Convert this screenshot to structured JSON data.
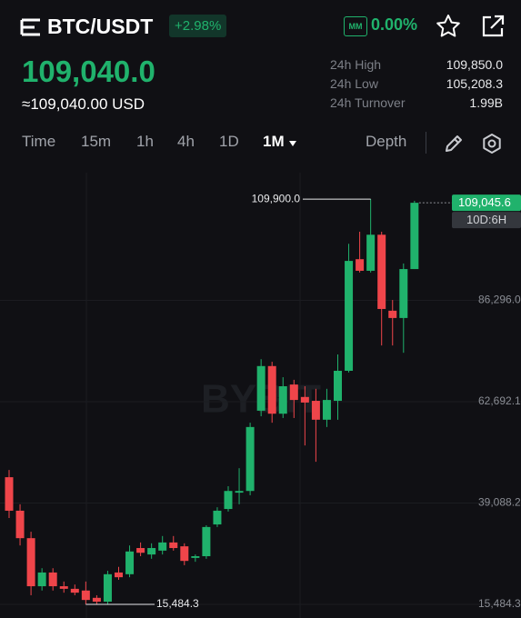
{
  "header": {
    "symbol": "BTC/USDT",
    "change": "+2.98%",
    "mm": "MM",
    "mm_rate": "0.00%"
  },
  "price": {
    "last": "109,040.0",
    "usd": "≈109,040.00 USD"
  },
  "stats": [
    {
      "label": "24h High",
      "value": "109,850.0"
    },
    {
      "label": "24h Low",
      "value": "105,208.3"
    },
    {
      "label": "24h Turnover",
      "value": "1.99B"
    }
  ],
  "tabs": [
    "Time",
    "15m",
    "1h",
    "4h",
    "1D",
    "1M",
    "Depth"
  ],
  "chart_data": {
    "type": "candlestick",
    "watermark": "BYBIT",
    "up_color": "#20b26c",
    "down_color": "#ef454a",
    "open": [
      45100,
      37300,
      30900,
      19700,
      22900,
      19700,
      19100,
      18700,
      17000,
      16100,
      22900,
      22500,
      28600,
      27100,
      28000,
      29900,
      29000,
      26300,
      26700,
      34100,
      37700,
      41500,
      41900,
      60600,
      71000,
      59900,
      66700,
      63800,
      62900,
      58500,
      62900,
      69900,
      95900,
      93200,
      101600,
      83900,
      82200,
      93600
    ],
    "high": [
      46800,
      38800,
      32400,
      23900,
      23900,
      20800,
      20100,
      20800,
      17600,
      23300,
      24200,
      29200,
      29900,
      29700,
      31400,
      31400,
      29700,
      27100,
      33900,
      38100,
      43000,
      47200,
      57800,
      72600,
      72000,
      68400,
      67800,
      66300,
      65700,
      65700,
      73700,
      99500,
      102300,
      109900,
      102300,
      86400,
      94900,
      109500
    ],
    "low": [
      35600,
      29200,
      17600,
      18700,
      18700,
      18200,
      17600,
      15484.3,
      15500,
      15500,
      21200,
      21800,
      26700,
      26100,
      27100,
      28000,
      24600,
      25400,
      26100,
      33500,
      37100,
      38800,
      40900,
      59300,
      57800,
      58900,
      58900,
      52500,
      48700,
      56800,
      58500,
      69500,
      92800,
      92800,
      75800,
      75800,
      74100,
      93600
    ],
    "close": [
      37300,
      30900,
      19700,
      22900,
      19700,
      19100,
      18200,
      16500,
      16100,
      22500,
      21800,
      27800,
      27500,
      28600,
      29900,
      28600,
      25600,
      26700,
      33500,
      37300,
      41900,
      41900,
      56800,
      71000,
      59900,
      66300,
      63100,
      62500,
      58500,
      63100,
      69900,
      95500,
      93200,
      101600,
      84300,
      82200,
      93600,
      109045.6
    ],
    "ylim": [
      12300,
      115000
    ],
    "yticks": [
      {
        "value": 15484.3,
        "label": "15,484.3"
      },
      {
        "value": 39088.2,
        "label": "39,088.2"
      },
      {
        "value": 62692.1,
        "label": "62,692.1"
      },
      {
        "value": 86296.0,
        "label": "86,296.0"
      }
    ],
    "grid": true,
    "high_label": "109,900.0",
    "low_label": "15,484.3",
    "last_price_label": "109,045.6",
    "countdown": "10D:6H"
  }
}
